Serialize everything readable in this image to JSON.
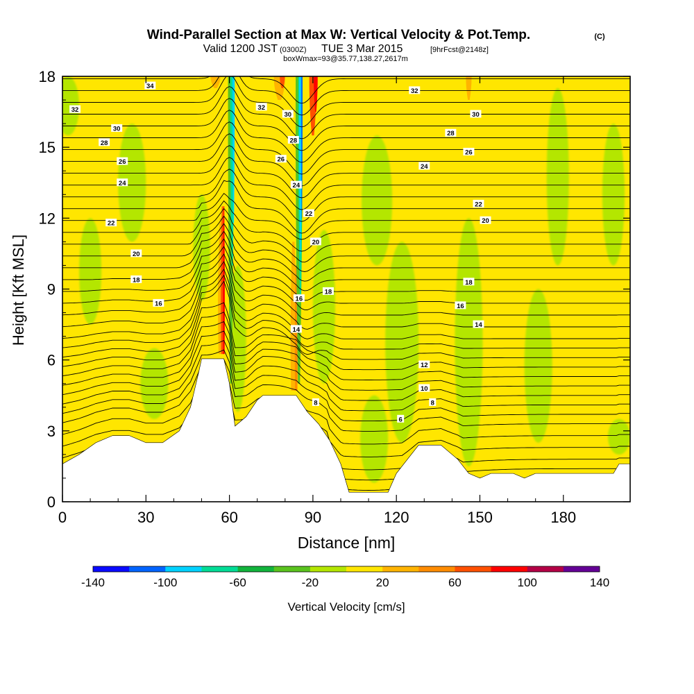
{
  "chart_data": {
    "type": "heatmap",
    "title": "Wind-Parallel Section at Max W: Vertical Velocity & Pot.Temp.",
    "title_mark": "(C)",
    "subtitle_parts": [
      "Valid 1200 JST",
      "(0300Z)",
      "TUE 3 Mar 2015",
      "[9hrFcst@2148z]"
    ],
    "subtitle2": "boxWmax=93@35.77,138.27,2617m",
    "xlabel": "Distance [nm]",
    "ylabel": "Height [Kft MSL]",
    "xlim": [
      0,
      204
    ],
    "ylim": [
      0,
      18
    ],
    "x_ticks": [
      "0",
      "30",
      "60",
      "90",
      "120",
      "150",
      "180"
    ],
    "y_ticks": [
      "0",
      "3",
      "6",
      "9",
      "12",
      "15",
      "18"
    ],
    "colorbar": {
      "label": "Vertical Velocity [cm/s]",
      "tick_labels": [
        "-140",
        "-100",
        "-60",
        "-20",
        "20",
        "60",
        "100",
        "140"
      ],
      "range": [
        -140,
        140
      ],
      "colors": [
        "#0a0aff",
        "#0064ff",
        "#00d2ff",
        "#00dc96",
        "#12b43c",
        "#5ac31e",
        "#b4e600",
        "#ffe600",
        "#ffb400",
        "#ff8c00",
        "#ff5000",
        "#ff0000",
        "#b40046",
        "#640096"
      ]
    },
    "background_color": "#ffe600",
    "updraft_color": "#ffb400",
    "terrain_profile": [
      {
        "x": 0,
        "h": 1.6
      },
      {
        "x": 6,
        "h": 2.0
      },
      {
        "x": 12,
        "h": 2.5
      },
      {
        "x": 18,
        "h": 2.8
      },
      {
        "x": 24,
        "h": 2.8
      },
      {
        "x": 30,
        "h": 2.5
      },
      {
        "x": 36,
        "h": 2.5
      },
      {
        "x": 42,
        "h": 3.0
      },
      {
        "x": 46,
        "h": 4.0
      },
      {
        "x": 49,
        "h": 5.5
      },
      {
        "x": 50,
        "h": 6.05
      },
      {
        "x": 58,
        "h": 6.05
      },
      {
        "x": 60,
        "h": 5.0
      },
      {
        "x": 62,
        "h": 3.2
      },
      {
        "x": 66,
        "h": 3.6
      },
      {
        "x": 70,
        "h": 4.3
      },
      {
        "x": 72,
        "h": 4.5
      },
      {
        "x": 84,
        "h": 4.5
      },
      {
        "x": 88,
        "h": 3.8
      },
      {
        "x": 92,
        "h": 3.3
      },
      {
        "x": 96,
        "h": 2.6
      },
      {
        "x": 100,
        "h": 1.6
      },
      {
        "x": 103,
        "h": 0.4
      },
      {
        "x": 117,
        "h": 0.4
      },
      {
        "x": 120,
        "h": 1.2
      },
      {
        "x": 124,
        "h": 1.8
      },
      {
        "x": 128,
        "h": 2.4
      },
      {
        "x": 136,
        "h": 2.4
      },
      {
        "x": 142,
        "h": 1.8
      },
      {
        "x": 146,
        "h": 1.2
      },
      {
        "x": 150,
        "h": 1.0
      },
      {
        "x": 154,
        "h": 1.2
      },
      {
        "x": 162,
        "h": 1.2
      },
      {
        "x": 166,
        "h": 1.0
      },
      {
        "x": 170,
        "h": 1.2
      },
      {
        "x": 198,
        "h": 1.2
      },
      {
        "x": 200,
        "h": 1.6
      },
      {
        "x": 204,
        "h": 1.6
      }
    ],
    "green_regions": [
      {
        "x": 2,
        "h0": 15.5,
        "h1": 18.0,
        "w": 4.0
      },
      {
        "x": 25,
        "h0": 11.0,
        "h1": 16.0,
        "w": 5.0
      },
      {
        "x": 10,
        "h0": 7.5,
        "h1": 12.0,
        "w": 4.0
      },
      {
        "x": 33,
        "h0": 3.5,
        "h1": 6.5,
        "w": 5.0
      },
      {
        "x": 50,
        "h0": 8.5,
        "h1": 13.0,
        "w": 3.0
      },
      {
        "x": 63,
        "h0": 3.8,
        "h1": 10.0,
        "w": 3.0
      },
      {
        "x": 94,
        "h0": 5.0,
        "h1": 11.5,
        "w": 4.0
      },
      {
        "x": 112,
        "h0": 0.8,
        "h1": 4.5,
        "w": 5.0
      },
      {
        "x": 113,
        "h0": 10.0,
        "h1": 15.5,
        "w": 5.5
      },
      {
        "x": 122,
        "h0": 2.5,
        "h1": 11.0,
        "w": 6.0
      },
      {
        "x": 146,
        "h0": 1.5,
        "h1": 12.0,
        "w": 5.0
      },
      {
        "x": 171,
        "h0": 2.5,
        "h1": 9.0,
        "w": 5.0
      },
      {
        "x": 178,
        "h0": 10.0,
        "h1": 17.5,
        "w": 4.0
      },
      {
        "x": 198,
        "h0": 10.0,
        "h1": 16.0,
        "w": 4.0
      },
      {
        "x": 200,
        "h0": 2.0,
        "h1": 3.5,
        "w": 4.0
      }
    ],
    "updraft_plumes": [
      {
        "x": 57,
        "h": 7.5,
        "w": 3.0,
        "color": "#ffb400"
      },
      {
        "x": 57.5,
        "h": 8.0,
        "w": 1.6,
        "color": "#ff5000"
      },
      {
        "x": 58,
        "h": 8.8,
        "w": 0.9,
        "color": "#ff0000"
      },
      {
        "x": 83,
        "h": 6.5,
        "w": 2.8,
        "color": "#ffb400"
      },
      {
        "x": 84,
        "h": 5.5,
        "w": 1.4,
        "color": "#ff8c00"
      },
      {
        "x": 55,
        "h": 17.5,
        "w": 3.5,
        "color": "#ffb400"
      },
      {
        "x": 78,
        "h": 17.0,
        "w": 4.0,
        "color": "#ffb400"
      },
      {
        "x": 79,
        "h": 17.5,
        "w": 1.8,
        "color": "#ff5000"
      },
      {
        "x": 90,
        "h": 15.5,
        "w": 2.6,
        "color": "#ff5000"
      },
      {
        "x": 91,
        "h": 16.5,
        "w": 1.4,
        "color": "#ff0000"
      },
      {
        "x": 146,
        "h": 17.0,
        "w": 2.0,
        "color": "#ffb400"
      }
    ],
    "downdraft_plumes": [
      {
        "x": 60.5,
        "h": 10.5,
        "w": 2.0,
        "color": "#5ac31e"
      },
      {
        "x": 61,
        "h": 15.5,
        "w": 1.4,
        "color": "#00dc96"
      },
      {
        "x": 61.5,
        "h": 17.3,
        "w": 0.8,
        "color": "#00d2ff"
      },
      {
        "x": 85,
        "h": 10.5,
        "w": 2.4,
        "color": "#5ac31e"
      },
      {
        "x": 85.5,
        "h": 14.0,
        "w": 1.6,
        "color": "#00dc96"
      },
      {
        "x": 85.5,
        "h": 16.0,
        "w": 0.9,
        "color": "#00d2ff"
      },
      {
        "x": 86,
        "h": 17.5,
        "w": 0.5,
        "color": "#0064ff"
      }
    ],
    "isentropes": {
      "base_levels": [
        0.3,
        0.6,
        1.0,
        1.4,
        1.8,
        2.3,
        2.8,
        3.3,
        3.7,
        4.1,
        4.5,
        4.9,
        5.3,
        5.7,
        6.1,
        6.5,
        6.9,
        7.4,
        7.9,
        8.4,
        8.9,
        9.4,
        9.9,
        10.4,
        10.9,
        11.4,
        11.9,
        12.4,
        12.9,
        13.4,
        13.9,
        14.4,
        14.9,
        15.4,
        15.9,
        16.4,
        16.9,
        17.4,
        17.9
      ]
    },
    "isentrope_labels": [
      {
        "text": "34",
        "x": 31.5,
        "y": 17.6
      },
      {
        "text": "32",
        "x": 4.5,
        "y": 16.6
      },
      {
        "text": "30",
        "x": 19.5,
        "y": 15.8
      },
      {
        "text": "28",
        "x": 15,
        "y": 15.2
      },
      {
        "text": "26",
        "x": 21.5,
        "y": 14.4
      },
      {
        "text": "24",
        "x": 21.5,
        "y": 13.5
      },
      {
        "text": "22",
        "x": 17.5,
        "y": 11.8
      },
      {
        "text": "20",
        "x": 26.5,
        "y": 10.5
      },
      {
        "text": "18",
        "x": 26.5,
        "y": 9.4
      },
      {
        "text": "16",
        "x": 34.5,
        "y": 8.4
      },
      {
        "text": "32",
        "x": 71.5,
        "y": 16.7
      },
      {
        "text": "30",
        "x": 81,
        "y": 16.4
      },
      {
        "text": "28",
        "x": 83,
        "y": 15.3
      },
      {
        "text": "26",
        "x": 78.5,
        "y": 14.5
      },
      {
        "text": "24",
        "x": 84,
        "y": 13.4
      },
      {
        "text": "22",
        "x": 88.5,
        "y": 12.2
      },
      {
        "text": "20",
        "x": 91,
        "y": 11.0
      },
      {
        "text": "18",
        "x": 95.5,
        "y": 8.9
      },
      {
        "text": "16",
        "x": 85,
        "y": 8.6
      },
      {
        "text": "14",
        "x": 84,
        "y": 7.3
      },
      {
        "text": "8",
        "x": 91,
        "y": 4.2
      },
      {
        "text": "6",
        "x": 121.5,
        "y": 3.5
      },
      {
        "text": "8",
        "x": 133,
        "y": 4.2
      },
      {
        "text": "10",
        "x": 130,
        "y": 4.8
      },
      {
        "text": "12",
        "x": 130,
        "y": 5.8
      },
      {
        "text": "14",
        "x": 149.5,
        "y": 7.5
      },
      {
        "text": "16",
        "x": 143,
        "y": 8.3
      },
      {
        "text": "18",
        "x": 146,
        "y": 9.3
      },
      {
        "text": "20",
        "x": 152,
        "y": 11.9
      },
      {
        "text": "22",
        "x": 149.5,
        "y": 12.6
      },
      {
        "text": "24",
        "x": 130,
        "y": 14.2
      },
      {
        "text": "26",
        "x": 146,
        "y": 14.8
      },
      {
        "text": "28",
        "x": 139.5,
        "y": 15.6
      },
      {
        "text": "30",
        "x": 148.5,
        "y": 16.4
      },
      {
        "text": "32",
        "x": 126.5,
        "y": 17.4
      }
    ]
  }
}
